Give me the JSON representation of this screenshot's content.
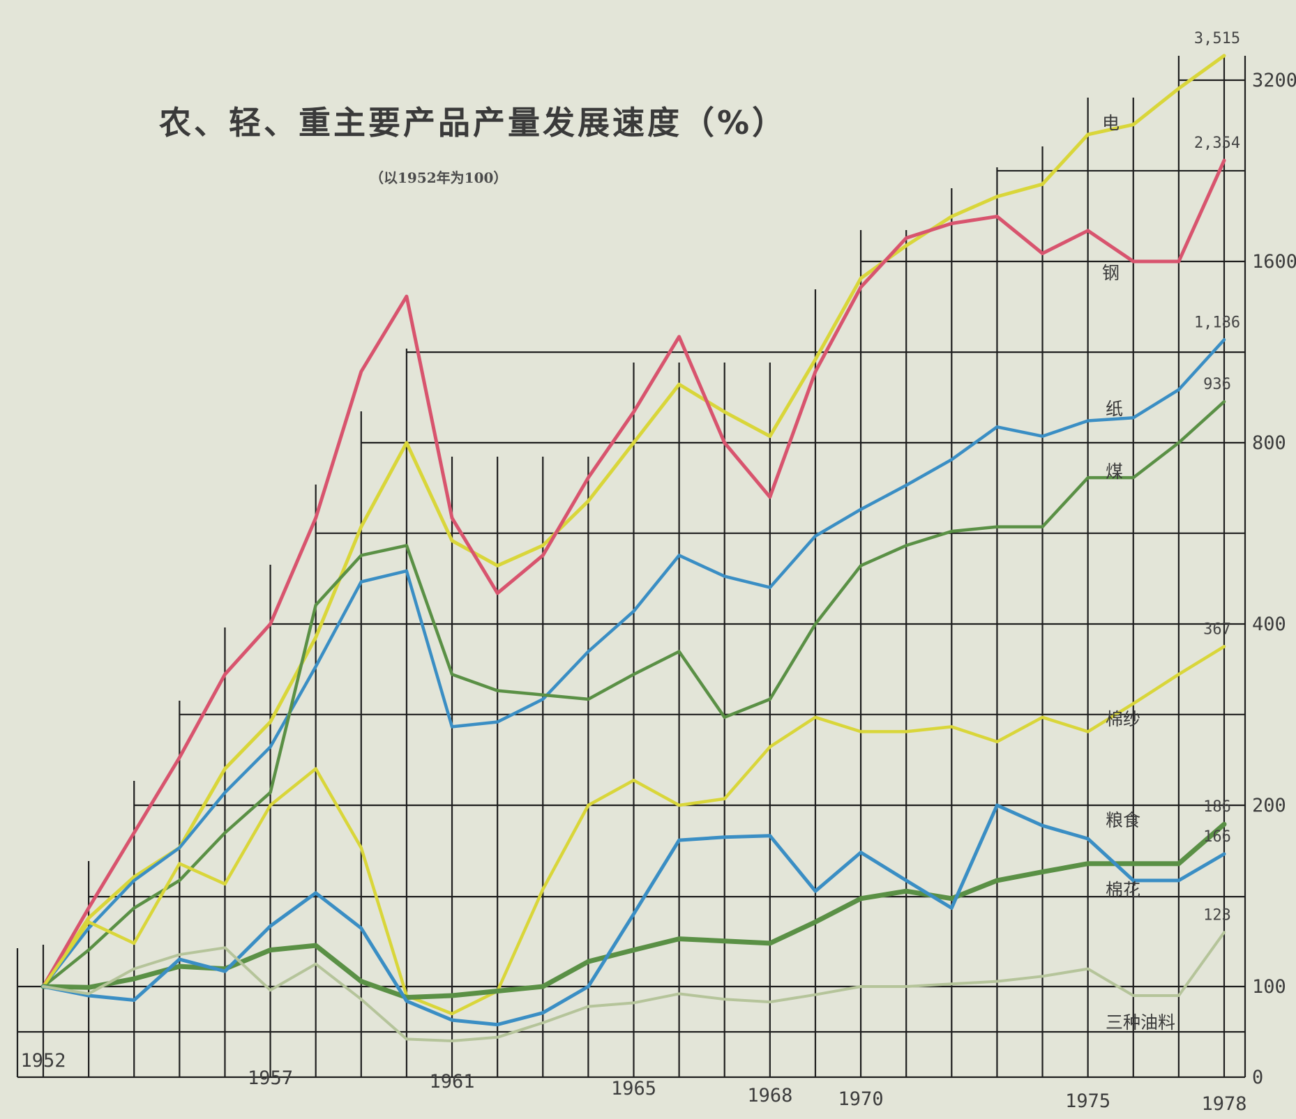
{
  "chart_data": {
    "type": "line",
    "title": "农、轻、重主要产品产量发展速度（%）",
    "subtitle": "（以1952年为100）",
    "x_tick_labels": [
      "1952",
      "1957",
      "1961",
      "1965",
      "1968",
      "1970",
      "1975",
      "1978"
    ],
    "y_tick_labels": [
      "0",
      "100",
      "200",
      "400",
      "800",
      "1600",
      "3200"
    ],
    "y_scale": "custom-log (0 at baseline, then doubling bands)",
    "xlim": [
      1952,
      1978
    ],
    "grid": true,
    "legend": "inline labels at line ends",
    "x": [
      1952,
      1953,
      1954,
      1955,
      1956,
      1957,
      1958,
      1959,
      1960,
      1961,
      1962,
      1963,
      1964,
      1965,
      1966,
      1967,
      1968,
      1969,
      1970,
      1971,
      1972,
      1973,
      1974,
      1975,
      1976,
      1977,
      1978
    ],
    "series": [
      {
        "name": "电",
        "color": "#d9d63a",
        "end_label": "3,515",
        "width": 5,
        "values": [
          100,
          130,
          152,
          170,
          230,
          275,
          380,
          580,
          800,
          550,
          500,
          540,
          640,
          800,
          1000,
          900,
          820,
          1100,
          1500,
          1700,
          1900,
          2050,
          2150,
          2600,
          2700,
          3100,
          3515
        ]
      },
      {
        "name": "钢",
        "color": "#d8546e",
        "end_label": "2,354",
        "width": 5,
        "values": [
          100,
          135,
          180,
          240,
          330,
          400,
          600,
          1050,
          1400,
          600,
          450,
          520,
          700,
          900,
          1200,
          800,
          650,
          1050,
          1450,
          1750,
          1850,
          1900,
          1650,
          1800,
          1600,
          1600,
          2354
        ]
      },
      {
        "name": "纸",
        "color": "#3a8ec4",
        "end_label": "1,186",
        "width": 4.5,
        "values": [
          100,
          125,
          150,
          170,
          210,
          250,
          340,
          470,
          490,
          270,
          275,
          300,
          360,
          420,
          520,
          480,
          460,
          560,
          620,
          680,
          750,
          850,
          820,
          870,
          880,
          980,
          1186
        ]
      },
      {
        "name": "煤",
        "color": "#5a9045",
        "end_label": "936",
        "width": 4.5,
        "values": [
          100,
          115,
          135,
          150,
          180,
          210,
          430,
          520,
          540,
          330,
          310,
          305,
          300,
          330,
          360,
          280,
          300,
          400,
          500,
          540,
          570,
          580,
          580,
          700,
          700,
          800,
          936
        ]
      },
      {
        "name": "棉纱",
        "color": "#d9d63a",
        "end_label": "367",
        "width": 4.5,
        "values": [
          100,
          128,
          118,
          160,
          148,
          200,
          230,
          170,
          90,
          70,
          95,
          145,
          200,
          220,
          200,
          205,
          250,
          280,
          265,
          265,
          270,
          255,
          280,
          265,
          295,
          330,
          367
        ]
      },
      {
        "name": "粮食",
        "color": "#5a9045",
        "end_label": "186",
        "width": 7,
        "values": [
          100,
          99,
          103,
          108,
          107,
          115,
          117,
          102,
          88,
          90,
          95,
          100,
          110,
          115,
          120,
          119,
          118,
          128,
          140,
          144,
          140,
          150,
          155,
          160,
          160,
          160,
          186
        ]
      },
      {
        "name": "棉花",
        "color": "#3a8ec4",
        "end_label": "166",
        "width": 5,
        "values": [
          100,
          90,
          85,
          111,
          106,
          126,
          143,
          125,
          84,
          63,
          58,
          71,
          100,
          132,
          175,
          177,
          178,
          144,
          167,
          150,
          135,
          200,
          185,
          176,
          150,
          150,
          166
        ]
      },
      {
        "name": "三种油料",
        "color": "#b5c49a",
        "end_label": "123",
        "width": 4,
        "values": [
          100,
          92,
          107,
          113,
          116,
          96,
          109,
          86,
          42,
          40,
          44,
          60,
          78,
          82,
          92,
          86,
          83,
          91,
          100,
          100,
          101,
          102,
          104,
          107,
          90,
          90,
          123
        ]
      }
    ]
  }
}
